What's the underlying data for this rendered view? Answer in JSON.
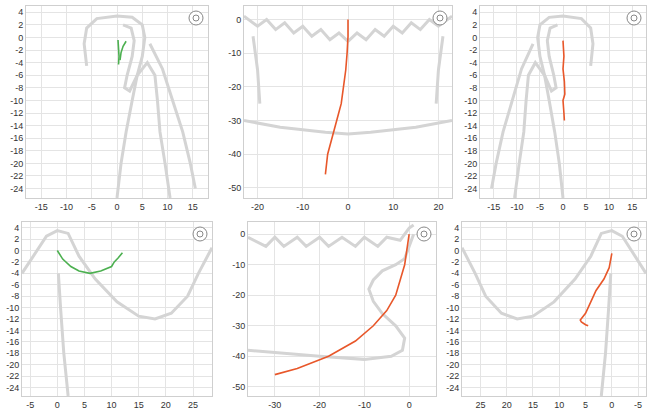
{
  "chart_data": [
    {
      "type": "line",
      "grid": true,
      "xlim": [
        -18,
        18
      ],
      "ylim": [
        -25.5,
        5
      ],
      "xticks": [
        -15,
        -10,
        -5,
        0,
        5,
        10,
        15
      ],
      "yticks": [
        -24,
        -22,
        -20,
        -18,
        -16,
        -14,
        -12,
        -10,
        -8,
        -6,
        -4,
        -2,
        0,
        2,
        4
      ],
      "series": [
        {
          "color": "#d4d4d4",
          "line_style": "thick",
          "x": [
            -6,
            -6.5,
            -6,
            -4,
            0,
            3,
            5,
            5.5,
            5,
            4,
            3,
            1.8,
            0.8,
            0,
            null,
            1.2,
            2.8,
            3.4,
            3,
            2,
            1.5,
            2.5,
            4,
            6,
            7.5,
            8,
            8.5,
            9.5,
            10.5,
            null,
            6.5,
            9,
            11,
            13,
            14.5,
            15.5
          ],
          "y": [
            -4.5,
            -1,
            1.5,
            3,
            3.4,
            3.2,
            2,
            0,
            -3,
            -6,
            -10,
            -15,
            -20,
            -25.5,
            null,
            2,
            1.5,
            -0.5,
            -3,
            -6,
            -8,
            -8.5,
            -6,
            -4,
            -6,
            -10,
            -15,
            -20,
            -25.5,
            null,
            -1,
            -5,
            -10,
            -15,
            -20,
            -24
          ]
        },
        {
          "color": "#4cb050",
          "line_style": "thin",
          "x": [
            0.2,
            0.3,
            0.4,
            0.3,
            null,
            1.8,
            1.2,
            0.8,
            0.6
          ],
          "y": [
            -0.4,
            -1.5,
            -3,
            -4.3,
            null,
            -0.6,
            -1.4,
            -2.4,
            -3.6
          ]
        }
      ]
    },
    {
      "type": "line",
      "grid": true,
      "xlim": [
        -23,
        23
      ],
      "ylim": [
        -53,
        4
      ],
      "xticks": [
        -20,
        -10,
        0,
        10,
        20
      ],
      "yticks": [
        -50,
        -40,
        -30,
        -20,
        -10,
        0
      ],
      "series": [
        {
          "color": "#d4d4d4",
          "line_style": "thick",
          "x": [
            -23,
            -20,
            -18,
            -16,
            -14,
            -12,
            -10,
            -8,
            -6,
            -4,
            -2,
            0,
            2,
            4,
            6,
            8,
            10,
            12,
            14,
            16,
            18,
            20,
            23,
            null,
            -23,
            -15,
            -5,
            0,
            5,
            15,
            23,
            null,
            -21,
            -20,
            -19.5,
            null,
            21,
            20,
            19.5
          ],
          "y": [
            1,
            -2,
            0,
            -3,
            -1,
            -4,
            -2,
            -5,
            -3,
            -6,
            -4,
            -6.5,
            -4,
            -6,
            -3,
            -5,
            -2,
            -4,
            -1,
            -3,
            0,
            -2,
            1,
            null,
            -30,
            -32,
            -33.5,
            -34,
            -33.5,
            -32,
            -30,
            null,
            -5,
            -15,
            -25,
            null,
            -5,
            -15,
            -25
          ]
        },
        {
          "color": "#e8572a",
          "line_style": "thin",
          "x": [
            0,
            0,
            -0.2,
            -0.5,
            -1,
            -1.5,
            -2.5,
            -3.5,
            -4.5,
            -5
          ],
          "y": [
            0,
            -5,
            -10,
            -15,
            -20,
            -25,
            -30,
            -35,
            -40,
            -46
          ]
        }
      ]
    },
    {
      "type": "line",
      "grid": true,
      "xlim": [
        -18,
        18
      ],
      "ylim": [
        -25.5,
        5
      ],
      "xticks": [
        -15,
        -10,
        -5,
        0,
        5,
        10,
        15
      ],
      "yticks": [
        -24,
        -22,
        -20,
        -18,
        -16,
        -14,
        -12,
        -10,
        -8,
        -6,
        -4,
        -2,
        0,
        2,
        4
      ],
      "series": [
        {
          "color": "#d4d4d4",
          "line_style": "thick",
          "x": [
            6,
            6.5,
            6,
            4,
            0,
            -3,
            -5,
            -5.5,
            -5,
            -4,
            -3,
            -1.8,
            -0.8,
            0,
            null,
            -1.2,
            -2.8,
            -3.4,
            -3,
            -2,
            -1.5,
            -2.5,
            -4,
            -6,
            -7.5,
            -8,
            -8.5,
            -9.5,
            -10.5,
            null,
            -6.5,
            -9,
            -11,
            -13,
            -14.5,
            -15.5
          ],
          "y": [
            -4.5,
            -1,
            1.5,
            3,
            3.4,
            3.2,
            2,
            0,
            -3,
            -6,
            -10,
            -15,
            -20,
            -25.5,
            null,
            2,
            1.5,
            -0.5,
            -3,
            -6,
            -8,
            -8.5,
            -6,
            -4,
            -6,
            -10,
            -15,
            -20,
            -25.5,
            null,
            -1,
            -5,
            -10,
            -15,
            -20,
            -24
          ]
        },
        {
          "color": "#e8572a",
          "line_style": "thin",
          "x": [
            0,
            0.2,
            0,
            0.3,
            0.4,
            0,
            0.2,
            0.3
          ],
          "y": [
            -0.5,
            -3,
            -5,
            -7,
            -9,
            -10,
            -12,
            -13.2
          ]
        }
      ]
    },
    {
      "type": "line",
      "grid": true,
      "xlim": [
        -6.5,
        28.5
      ],
      "ylim": [
        -25.5,
        5
      ],
      "xticks": [
        -5,
        0,
        5,
        10,
        15,
        20,
        25
      ],
      "yticks": [
        -24,
        -22,
        -20,
        -18,
        -16,
        -14,
        -12,
        -10,
        -8,
        -6,
        -4,
        -2,
        0,
        2,
        4
      ],
      "series": [
        {
          "color": "#d4d4d4",
          "line_style": "thick",
          "x": [
            -6.5,
            -4,
            -2,
            0,
            2,
            4,
            7,
            11,
            15,
            18,
            21,
            24,
            26,
            28.5,
            null,
            2,
            1.2,
            0.6,
            0.2
          ],
          "y": [
            -4,
            -0.5,
            2.5,
            3.5,
            3,
            -1,
            -5,
            -9,
            -11.5,
            -12,
            -11,
            -8,
            -4,
            0.5,
            null,
            -25.5,
            -18,
            -10,
            -4
          ]
        },
        {
          "color": "#4cb050",
          "line_style": "thin",
          "x": [
            0,
            1,
            2.5,
            4,
            6,
            8,
            10,
            10.5,
            11.2,
            12
          ],
          "y": [
            0,
            -1.5,
            -2.8,
            -3.6,
            -4,
            -3.6,
            -2.8,
            -2,
            -1.3,
            -0.4
          ]
        }
      ]
    },
    {
      "type": "line",
      "grid": true,
      "xlim": [
        -36,
        6
      ],
      "ylim": [
        -53,
        4
      ],
      "xticks": [
        -30,
        -20,
        -10,
        0
      ],
      "yticks": [
        -50,
        -40,
        -30,
        -20,
        -10,
        0
      ],
      "series": [
        {
          "color": "#d4d4d4",
          "line_style": "thick",
          "x": [
            -36,
            -32,
            -30,
            -28,
            -25,
            -23,
            -20,
            -18,
            -15,
            -12,
            -10,
            -7,
            -5,
            -2,
            0,
            1,
            null,
            1,
            0,
            -1,
            -3,
            -6,
            -8,
            -9,
            -8,
            -6,
            -3,
            -1,
            -1.5,
            -4,
            -10,
            -20,
            -36
          ],
          "y": [
            -1,
            -4,
            -1,
            -4,
            -1,
            -4,
            -1,
            -4,
            -1,
            -4,
            -1,
            -4,
            -1,
            -2,
            2,
            3,
            null,
            0,
            -4,
            -8,
            -10,
            -12,
            -15,
            -18,
            -22,
            -26,
            -30,
            -34,
            -38,
            -40,
            -41,
            -40,
            -38
          ]
        },
        {
          "color": "#e8572a",
          "line_style": "thin",
          "x": [
            0,
            -0.5,
            -1,
            -2,
            -3,
            -5,
            -8,
            -12,
            -18,
            -25,
            -30
          ],
          "y": [
            0,
            -5,
            -10,
            -15,
            -20,
            -25,
            -30,
            -35,
            -40,
            -44,
            -46
          ]
        }
      ]
    },
    {
      "type": "line",
      "grid": true,
      "xlim": [
        28.5,
        -6.5
      ],
      "ylim": [
        -25.5,
        5
      ],
      "xticks": [
        25,
        20,
        15,
        10,
        5,
        0,
        -5
      ],
      "yticks": [
        -24,
        -22,
        -20,
        -18,
        -16,
        -14,
        -12,
        -10,
        -8,
        -6,
        -4,
        -2,
        0,
        2,
        4
      ],
      "series": [
        {
          "color": "#d4d4d4",
          "line_style": "thick",
          "x": [
            -6.5,
            -4,
            -2,
            0,
            2,
            4,
            7,
            11,
            15,
            18,
            21,
            24,
            26,
            28.5,
            null,
            2,
            1.2,
            0.6,
            0.2
          ],
          "y": [
            -4,
            -0.5,
            2.5,
            3.5,
            3,
            -1,
            -5,
            -9,
            -11.5,
            -12,
            -11,
            -8,
            -4,
            0.5,
            null,
            -25.5,
            -18,
            -10,
            -4
          ]
        },
        {
          "color": "#e8572a",
          "line_style": "thin",
          "x": [
            0,
            0.5,
            1.5,
            3,
            4,
            5,
            6,
            5.8,
            5,
            4.5
          ],
          "y": [
            -0.5,
            -3,
            -5,
            -7,
            -9,
            -11,
            -12.2,
            -12.5,
            -13,
            -13.2
          ]
        }
      ]
    }
  ]
}
